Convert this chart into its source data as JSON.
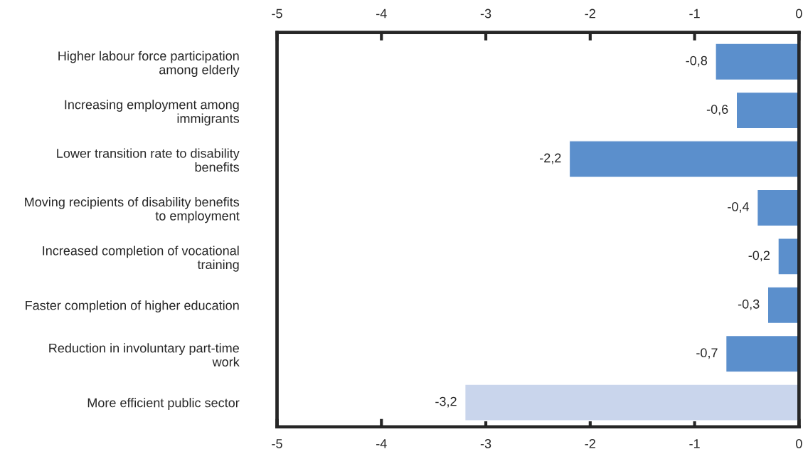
{
  "chart_data": {
    "type": "bar",
    "orientation": "horizontal",
    "categories": [
      "Higher labour force participation\namong elderly",
      "Increasing employment among\nimmigrants",
      "Lower transition rate to disability\nbenefits",
      "Moving recipients of disability benefits\nto employment",
      "Increased completion of vocational\ntraining",
      "Faster completion of higher education",
      "Reduction in involuntary part-time\nwork",
      "More efficient public sector"
    ],
    "values": [
      -0.8,
      -0.6,
      -2.2,
      -0.4,
      -0.2,
      -0.3,
      -0.7,
      -3.2
    ],
    "colors": [
      "#5b8fcc",
      "#5b8fcc",
      "#5b8fcc",
      "#5b8fcc",
      "#5b8fcc",
      "#5b8fcc",
      "#5b8fcc",
      "#c9d5ec"
    ],
    "value_labels": [
      "-0,8",
      "-0,6",
      "-2,2",
      "-0,4",
      "-0,2",
      "-0,3",
      "-0,7",
      "-3,2"
    ],
    "xlim": [
      -5,
      0
    ],
    "xticks": [
      -5,
      -4,
      -3,
      -2,
      -1,
      0
    ],
    "x2lim": [
      -5,
      0
    ],
    "x2ticks": [
      -5,
      -4,
      -3,
      -2,
      -1,
      0
    ],
    "grid": false,
    "legend": false
  }
}
